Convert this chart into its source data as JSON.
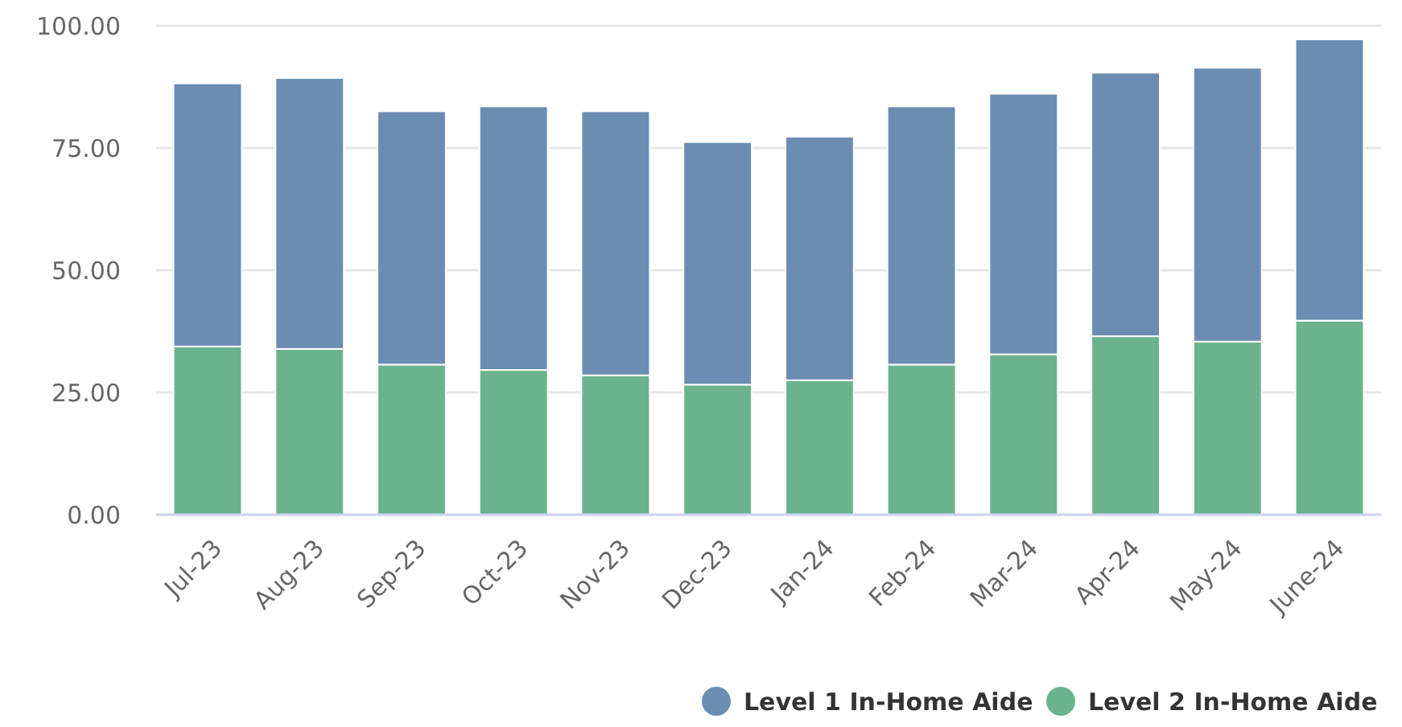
{
  "chart_data": {
    "type": "bar",
    "stacked": true,
    "categories": [
      "Jul-23",
      "Aug-23",
      "Sep-23",
      "Oct-23",
      "Nov-23",
      "Dec-23",
      "Jan-24",
      "Feb-24",
      "Mar-24",
      "Apr-24",
      "May-24",
      "June-24"
    ],
    "series": [
      {
        "name": "Level 2 In-Home Aide",
        "color": "#6bb38d",
        "values": [
          34.4,
          33.9,
          30.7,
          29.6,
          28.5,
          26.6,
          27.5,
          30.7,
          32.8,
          36.5,
          35.4,
          39.7
        ]
      },
      {
        "name": "Level 1 In-Home Aide",
        "color": "#6b8db2",
        "values": [
          53.8,
          55.4,
          51.8,
          53.9,
          54.0,
          49.6,
          49.8,
          52.8,
          53.3,
          53.9,
          56.0,
          57.5
        ]
      }
    ],
    "ylim": [
      0,
      100
    ],
    "yticks": [
      {
        "value": 0,
        "label": "0.00"
      },
      {
        "value": 25,
        "label": "25.00"
      },
      {
        "value": 50,
        "label": "50.00"
      },
      {
        "value": 75,
        "label": "75.00"
      },
      {
        "value": 100,
        "label": "100.00"
      }
    ],
    "grid": "y",
    "legend": "bottom right"
  }
}
